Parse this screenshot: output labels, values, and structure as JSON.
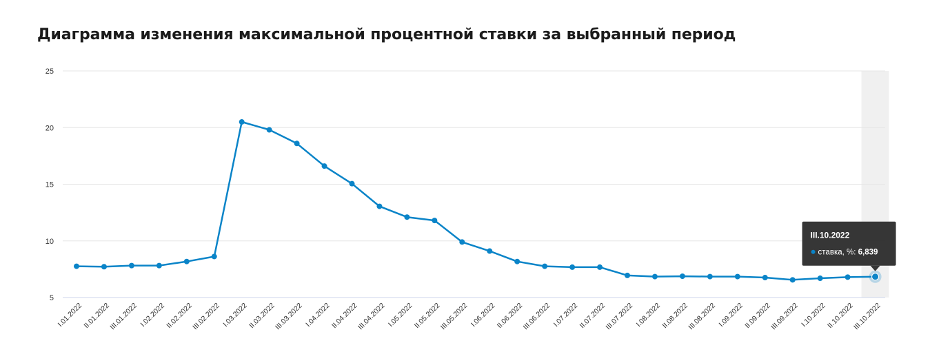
{
  "chart_data": {
    "type": "line",
    "title": "Диаграмма изменения максимальной процентной ставки за выбранный период",
    "categories": [
      "I.01.2022",
      "II.01.2022",
      "III.01.2022",
      "I.02.2022",
      "II.02.2022",
      "III.02.2022",
      "I.03.2022",
      "II.03.2022",
      "III.03.2022",
      "I.04.2022",
      "II.04.2022",
      "III.04.2022",
      "I.05.2022",
      "II.05.2022",
      "III.05.2022",
      "I.06.2022",
      "II.06.2022",
      "III.06.2022",
      "I.07.2022",
      "II.07.2022",
      "III.07.2022",
      "I.08.2022",
      "II.08.2022",
      "III.08.2022",
      "I.09.2022",
      "II.09.2022",
      "III.09.2022",
      "I.10.2022",
      "II.10.2022",
      "III.10.2022"
    ],
    "series": [
      {
        "name": "ставка, %",
        "color": "#0a84c8",
        "values": [
          7.76,
          7.72,
          7.82,
          7.82,
          8.18,
          8.62,
          20.5,
          19.8,
          18.6,
          16.6,
          15.05,
          13.05,
          12.1,
          11.8,
          9.9,
          9.1,
          8.18,
          7.76,
          7.68,
          7.68,
          6.95,
          6.85,
          6.88,
          6.85,
          6.85,
          6.76,
          6.56,
          6.7,
          6.8,
          6.839
        ]
      }
    ],
    "yticks": [
      5,
      10,
      15,
      20,
      25
    ],
    "ylim": [
      5,
      25
    ],
    "grid": true,
    "legend": "none",
    "tooltip": {
      "index": 29,
      "title": "III.10.2022",
      "label": "ставка, %:",
      "value": "6,839"
    }
  }
}
